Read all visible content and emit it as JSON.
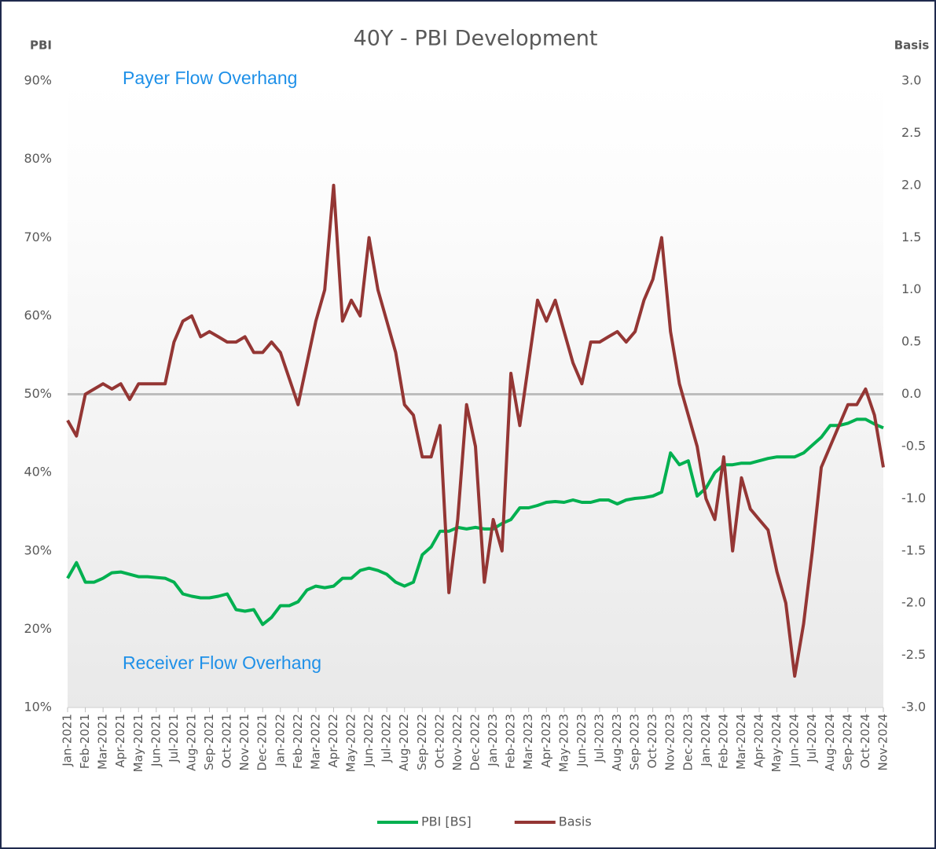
{
  "chart_data": {
    "type": "line",
    "title": "40Y - PBI Development",
    "y_label": "PBI",
    "y2_label": "Basis",
    "annotations": [
      "Payer Flow Overhang",
      "Receiver Flow Overhang"
    ],
    "categories": [
      "Jan-2021",
      null,
      "Feb-2021",
      null,
      "Mar-2021",
      null,
      "Apr-2021",
      null,
      "May-2021",
      null,
      "Jun-2021",
      null,
      "Jul-2021",
      null,
      "Aug-2021",
      null,
      "Sep-2021",
      null,
      "Oct-2021",
      null,
      "Nov-2021",
      null,
      "Dec-2021",
      null,
      "Jan-2022",
      null,
      "Feb-2022",
      null,
      "Mar-2022",
      null,
      "Apr-2022",
      null,
      "May-2022",
      null,
      "Jun-2022",
      null,
      "Jul-2022",
      null,
      "Aug-2022",
      null,
      "Sep-2022",
      null,
      "Oct-2022",
      null,
      "Nov-2022",
      null,
      "Dec-2022",
      null,
      "Jan-2023",
      null,
      "Feb-2023",
      null,
      "Mar-2023",
      null,
      "Apr-2023",
      null,
      "May-2023",
      null,
      "Jun-2023",
      null,
      "Jul-2023",
      null,
      "Aug-2023",
      null,
      "Sep-2023",
      null,
      "Oct-2023",
      null,
      "Nov-2023",
      null,
      "Dec-2023",
      null,
      "Jan-2024",
      null,
      "Feb-2024",
      null,
      "Mar-2024",
      null,
      "Apr-2024",
      null,
      "May-2024",
      null,
      "Jun-2024",
      null,
      "Jul-2024",
      null,
      "Aug-2024",
      null,
      "Sep-2024",
      null,
      "Oct-2024",
      null,
      "Nov-2024"
    ],
    "series": [
      {
        "name": "PBI [BS]",
        "color": "#00b050",
        "axis": "y",
        "values": [
          26.5,
          28.5,
          26,
          26,
          26.5,
          27.2,
          27.3,
          27,
          26.7,
          26.7,
          26.6,
          26.5,
          26,
          24.5,
          24.2,
          24,
          24,
          24.2,
          24.5,
          22.5,
          22.3,
          22.5,
          20.6,
          21.5,
          23,
          23,
          23.5,
          25,
          25.5,
          25.3,
          25.5,
          26.5,
          26.5,
          27.5,
          27.8,
          27.5,
          27,
          26,
          25.5,
          26,
          29.5,
          30.5,
          32.5,
          32.5,
          33,
          32.8,
          33,
          32.8,
          32.8,
          33.5,
          34,
          35.5,
          35.5,
          35.8,
          36.2,
          36.3,
          36.2,
          36.5,
          36.2,
          36.2,
          36.5,
          36.5,
          36,
          36.5,
          36.7,
          36.8,
          37,
          37.5,
          42.5,
          41,
          41.5,
          37,
          38,
          40,
          41,
          41,
          41.2,
          41.2,
          41.5,
          41.8,
          42,
          42,
          42,
          42.5,
          43.5,
          44.5,
          46,
          46,
          46.3,
          46.8,
          46.8,
          46.2,
          45.7
        ]
      },
      {
        "name": "Basis",
        "color": "#943634",
        "axis": "y2",
        "values": [
          -0.25,
          -0.4,
          0,
          0.05,
          0.1,
          0.05,
          0.1,
          -0.05,
          0.1,
          0.1,
          0.1,
          0.1,
          0.5,
          0.7,
          0.75,
          0.55,
          0.6,
          0.55,
          0.5,
          0.5,
          0.55,
          0.4,
          0.4,
          0.5,
          0.4,
          0.15,
          -0.1,
          0.3,
          0.7,
          1.0,
          2.0,
          0.7,
          0.9,
          0.75,
          1.5,
          1.0,
          0.7,
          0.4,
          -0.1,
          -0.2,
          -0.6,
          -0.6,
          -0.3,
          -1.9,
          -1.2,
          -0.1,
          -0.5,
          -1.8,
          -1.2,
          -1.5,
          0.2,
          -0.3,
          0.3,
          0.9,
          0.7,
          0.9,
          0.6,
          0.3,
          0.1,
          0.5,
          0.5,
          0.55,
          0.6,
          0.5,
          0.6,
          0.9,
          1.1,
          1.5,
          0.6,
          0.1,
          -0.2,
          -0.5,
          -1.0,
          -1.2,
          -0.6,
          -1.5,
          -0.8,
          -1.1,
          -1.2,
          -1.3,
          -1.7,
          -2.0,
          -2.7,
          -2.2,
          -1.5,
          -0.7,
          -0.5,
          -0.3,
          -0.1,
          -0.1,
          0.05,
          -0.2,
          -0.7
        ]
      }
    ],
    "ylim": [
      10,
      90
    ],
    "yticks": [
      {
        "value": 10,
        "label": "10%"
      },
      {
        "value": 20,
        "label": "20%"
      },
      {
        "value": 30,
        "label": "30%"
      },
      {
        "value": 40,
        "label": "40%"
      },
      {
        "value": 50,
        "label": "50%"
      },
      {
        "value": 60,
        "label": "60%"
      },
      {
        "value": 70,
        "label": "70%"
      },
      {
        "value": 80,
        "label": "80%"
      },
      {
        "value": 90,
        "label": "90%"
      }
    ],
    "y2lim": [
      -3,
      3
    ],
    "y2ticks": [
      {
        "value": -3,
        "label": "-3.0"
      },
      -2.5,
      {
        "value": -2,
        "label": "-2.0"
      },
      -1.5,
      {
        "value": -1,
        "label": "-1.0"
      },
      -0.5,
      {
        "value": 0,
        "label": "0.0"
      },
      0.5,
      {
        "value": 1,
        "label": "1.0"
      },
      1.5,
      {
        "value": 2,
        "label": "2.0"
      },
      2.5,
      {
        "value": 3,
        "label": "3.0"
      }
    ],
    "legend": "bottom"
  }
}
